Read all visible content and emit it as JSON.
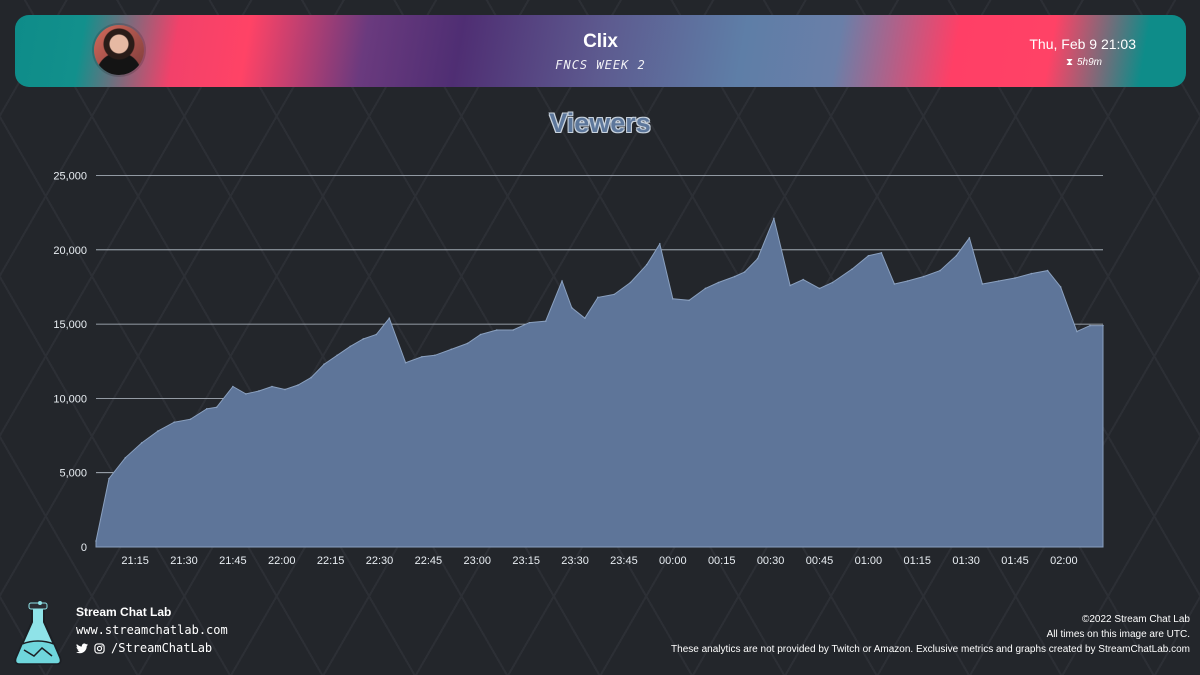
{
  "header": {
    "streamer": "Clix",
    "subtitle": "FNCS WEEK 2",
    "date": "Thu, Feb 9 21:03",
    "duration": "5h9m"
  },
  "chart_data": {
    "type": "area",
    "title": "Viewers",
    "ylim": [
      0,
      25000
    ],
    "yticks": [
      0,
      5000,
      10000,
      15000,
      20000,
      25000
    ],
    "ytick_labels": [
      "0",
      "5,000",
      "10,000",
      "15,000",
      "20,000",
      "25,000"
    ],
    "xlim_minutes_from_start": [
      0,
      309
    ],
    "xtick_labels": [
      "21:15",
      "21:30",
      "21:45",
      "22:00",
      "22:15",
      "22:30",
      "22:45",
      "23:00",
      "23:15",
      "23:30",
      "23:45",
      "00:00",
      "00:15",
      "00:30",
      "00:45",
      "01:00",
      "01:15",
      "01:30",
      "01:45",
      "02:00"
    ],
    "grid": true,
    "color": "#5e7599",
    "series": [
      {
        "t": [
          0,
          4,
          9,
          14,
          19,
          24,
          29,
          34,
          37,
          42,
          46,
          50,
          54,
          58,
          62,
          66,
          70,
          74,
          78,
          82,
          86,
          90,
          95,
          100,
          104,
          109,
          114,
          118,
          123,
          128,
          133,
          138,
          143,
          146,
          150,
          154,
          159,
          164,
          169,
          173,
          177,
          182,
          187,
          191,
          196,
          199,
          203,
          208,
          213,
          217,
          222,
          226,
          232,
          237,
          241,
          245,
          249,
          254,
          259,
          264,
          268,
          272,
          277,
          282,
          287,
          292,
          296,
          301,
          305,
          309
        ],
        "values": [
          400,
          4600,
          6000,
          7000,
          7800,
          8400,
          8600,
          9300,
          9400,
          10800,
          10300,
          10500,
          10800,
          10600,
          10900,
          11400,
          12300,
          12900,
          13500,
          14000,
          14300,
          15400,
          12400,
          12800,
          12900,
          13300,
          13700,
          14300,
          14600,
          14600,
          15100,
          15200,
          17900,
          16100,
          15400,
          16800,
          17000,
          17800,
          19000,
          20400,
          16700,
          16600,
          17400,
          17800,
          18200,
          18500,
          19400,
          22100,
          17600,
          18000,
          17400,
          17800,
          18700,
          19600,
          19800,
          17700,
          17900,
          18200,
          18600,
          19600,
          20800,
          17700,
          17900,
          18100,
          18400,
          18600,
          17500,
          14500,
          14900,
          14900
        ]
      }
    ]
  },
  "footer": {
    "brand": "Stream Chat Lab",
    "website": "www.streamchatlab.com",
    "social": "/StreamChatLab",
    "copyright": "©2022 Stream Chat Lab",
    "timezone_note": "All times on this image are UTC.",
    "disclaimer": "These analytics are not provided by Twitch or Amazon. Exclusive metrics and graphs created by StreamChatLab.com"
  },
  "icons": {
    "hourglass": "hourglass-icon",
    "twitter": "twitter-icon",
    "instagram": "instagram-icon",
    "logo": "flask-logo-icon"
  }
}
